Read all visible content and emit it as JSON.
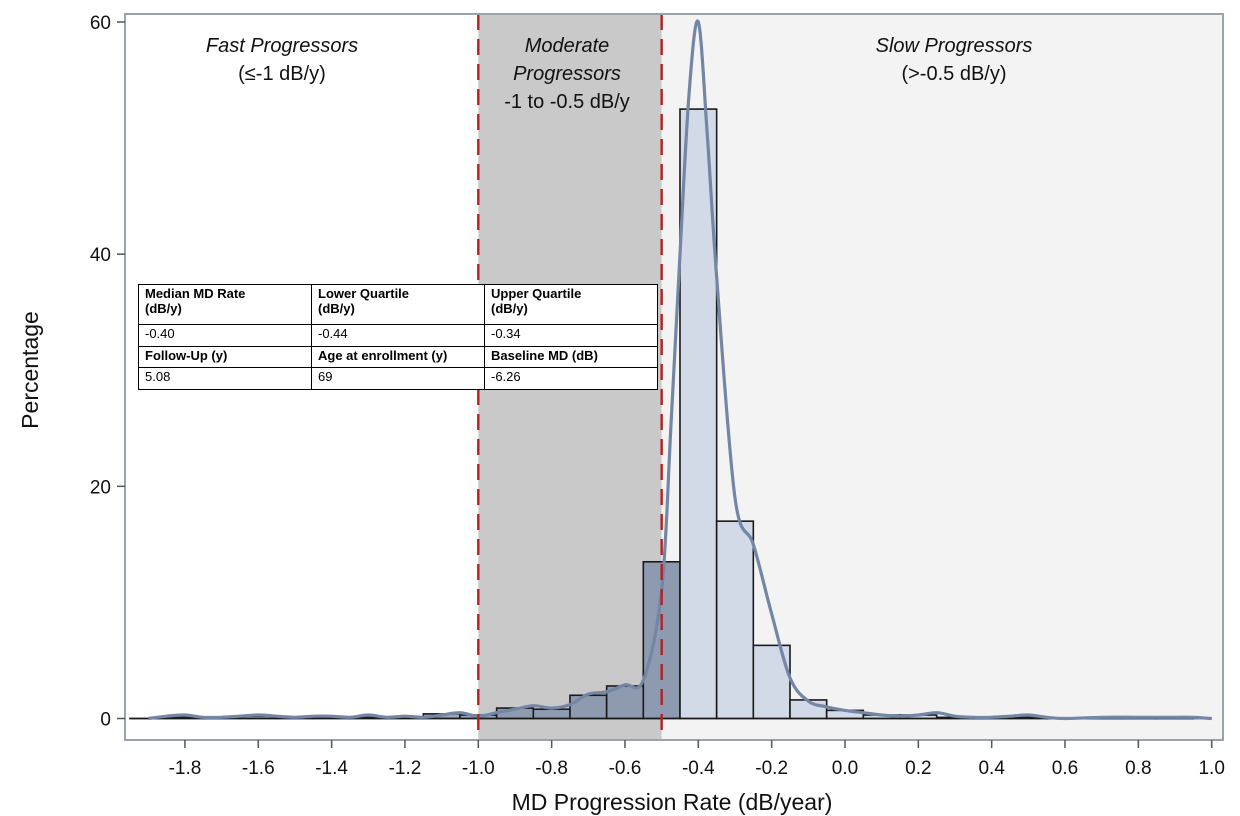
{
  "chart_data": {
    "type": "bar",
    "xlabel": "MD Progression Rate (dB/year)",
    "ylabel": "Percentage",
    "xlim": [
      -1.95,
      1.0
    ],
    "ylim": [
      0,
      60
    ],
    "x_ticks": [
      "-1.8",
      "-1.6",
      "-1.4",
      "-1.2",
      "-1.0",
      "-0.8",
      "-0.6",
      "-0.4",
      "-0.2",
      "0.0",
      "0.2",
      "0.4",
      "0.6",
      "0.8",
      "1.0"
    ],
    "x_tick_values": [
      -1.8,
      -1.6,
      -1.4,
      -1.2,
      -1.0,
      -0.8,
      -0.6,
      -0.4,
      -0.2,
      0.0,
      0.2,
      0.4,
      0.6,
      0.8,
      1.0
    ],
    "y_ticks": [
      "0",
      "20",
      "40",
      "60"
    ],
    "y_tick_values": [
      0,
      20,
      40,
      60
    ],
    "grid": false,
    "bin_width": 0.1,
    "histogram": {
      "bin_centers": [
        -1.9,
        -1.8,
        -1.7,
        -1.6,
        -1.5,
        -1.4,
        -1.3,
        -1.2,
        -1.1,
        -1.0,
        -0.9,
        -0.8,
        -0.7,
        -0.6,
        -0.5,
        -0.4,
        -0.3,
        -0.2,
        -0.1,
        0.0,
        0.1,
        0.2,
        0.3,
        0.4,
        0.5,
        0.6,
        0.7,
        0.8,
        0.9
      ],
      "values": [
        0.0,
        0.1,
        0.1,
        0.2,
        0.1,
        0.1,
        0.1,
        0.1,
        0.4,
        0.3,
        0.9,
        0.8,
        2.0,
        2.8,
        13.5,
        52.5,
        17.0,
        6.3,
        1.6,
        0.7,
        0.3,
        0.3,
        0.1,
        0.1,
        0.1,
        0.0,
        0.0,
        0.1,
        0.0
      ]
    },
    "density_curve": {
      "x": [
        -1.9,
        -1.85,
        -1.8,
        -1.75,
        -1.7,
        -1.65,
        -1.6,
        -1.55,
        -1.5,
        -1.45,
        -1.4,
        -1.35,
        -1.3,
        -1.25,
        -1.2,
        -1.15,
        -1.1,
        -1.05,
        -1.0,
        -0.95,
        -0.9,
        -0.85,
        -0.8,
        -0.75,
        -0.7,
        -0.65,
        -0.6,
        -0.55,
        -0.5,
        -0.475,
        -0.45,
        -0.425,
        -0.4,
        -0.375,
        -0.35,
        -0.3,
        -0.25,
        -0.2,
        -0.15,
        -0.1,
        -0.05,
        0.0,
        0.05,
        0.1,
        0.15,
        0.2,
        0.25,
        0.3,
        0.35,
        0.4,
        0.45,
        0.5,
        0.55,
        0.6,
        0.7,
        0.8,
        0.9,
        0.95,
        1.0
      ],
      "y": [
        0.0,
        0.2,
        0.3,
        0.1,
        0.1,
        0.2,
        0.3,
        0.2,
        0.1,
        0.2,
        0.2,
        0.1,
        0.3,
        0.1,
        0.2,
        0.1,
        0.3,
        0.5,
        0.2,
        0.5,
        0.8,
        1.1,
        0.9,
        1.2,
        2.1,
        2.3,
        2.9,
        3.3,
        11.0,
        25.0,
        40.0,
        54.0,
        60.0,
        50.0,
        38.0,
        19.0,
        15.0,
        9.0,
        3.5,
        1.5,
        1.0,
        0.7,
        0.5,
        0.3,
        0.2,
        0.3,
        0.5,
        0.2,
        0.1,
        0.1,
        0.2,
        0.3,
        0.1,
        0.0,
        0.1,
        0.1,
        0.1,
        0.1,
        0.0
      ]
    },
    "cutoffs": [
      -1.0,
      -0.5
    ],
    "regions": [
      {
        "title": "Fast Progressors",
        "subtitle": "(≤-1 dB/y)"
      },
      {
        "title": "Moderate",
        "title2": "Progressors",
        "subtitle": "-1 to -0.5 dB/y"
      },
      {
        "title": "Slow Progressors",
        "subtitle": "(>-0.5 dB/y)"
      }
    ],
    "colors": {
      "moderate_band": "#c9c9c9",
      "slow_band": "#f3f3f3",
      "bars_moderate": "#8e9ab0",
      "bars_slow": "#d2dae8",
      "bars_fast": "#9aa6bb",
      "curve": "#7386a5",
      "cutoff_line": "#b22222",
      "frame": "#9aa3ad"
    }
  },
  "stats_table": {
    "rows": [
      [
        "Median MD Rate\n(dB/y)",
        "Lower Quartile\n(dB/y)",
        "Upper Quartile\n(dB/y)"
      ],
      [
        "-0.40",
        "-0.44",
        "-0.34"
      ],
      [
        "Follow-Up (y)",
        "Age at enrollment (y)",
        "Baseline MD (dB)"
      ],
      [
        "5.08",
        "69",
        "-6.26"
      ]
    ]
  }
}
